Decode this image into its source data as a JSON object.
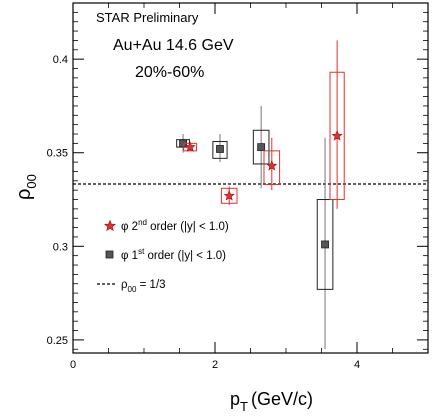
{
  "chart_data": {
    "type": "scatter",
    "xlabel": "p",
    "xlabel_sub": "T",
    "xlabel_unit": "(GeV/c)",
    "ylabel": "ρ",
    "ylabel_sub": "00",
    "xlim": [
      0,
      5
    ],
    "ylim": [
      0.243,
      0.43
    ],
    "xticks": [
      0,
      2,
      4
    ],
    "yticks": [
      0.25,
      0.3,
      0.35,
      0.4
    ],
    "ytick_labels": [
      "0.25",
      "0.3",
      "0.35",
      "0.4"
    ],
    "grid": false,
    "annotations": {
      "preliminary": "STAR Preliminary",
      "system": "Au+Au 14.6 GeV",
      "centrality": "20%-60%"
    },
    "reference_line": {
      "y": 0.3333,
      "label_main": "ρ",
      "label_sub": "00",
      "label_rest": " = 1/3"
    },
    "legend": {
      "placement": "lower-left",
      "entries": [
        {
          "symbol": "star",
          "color": "#e03030",
          "phi": "φ 2",
          "sup": "nd",
          "rest": " order (|y| < 1.0)"
        },
        {
          "symbol": "square",
          "color": "#555555",
          "phi": "φ 1",
          "sup": "st",
          "rest": " order (|y| < 1.0)"
        }
      ]
    },
    "series": [
      {
        "name": "φ 2nd order (|y| < 1.0)",
        "color": "#e03030",
        "marker": "star",
        "points": [
          {
            "x": 1.65,
            "y": 0.353,
            "stat_lo": 0.351,
            "stat_hi": 0.355,
            "sys_lo": 0.351,
            "sys_hi": 0.355,
            "sys_halfwidth": 0.09
          },
          {
            "x": 2.2,
            "y": 0.327,
            "stat_lo": 0.322,
            "stat_hi": 0.332,
            "sys_lo": 0.323,
            "sys_hi": 0.331,
            "sys_halfwidth": 0.11
          },
          {
            "x": 2.8,
            "y": 0.343,
            "stat_lo": 0.33,
            "stat_hi": 0.358,
            "sys_lo": 0.333,
            "sys_hi": 0.351,
            "sys_halfwidth": 0.11
          },
          {
            "x": 3.72,
            "y": 0.359,
            "stat_lo": 0.32,
            "stat_hi": 0.41,
            "sys_lo": 0.325,
            "sys_hi": 0.393,
            "sys_halfwidth": 0.1
          }
        ]
      },
      {
        "name": "φ 1st order (|y| < 1.0)",
        "color": "#555555",
        "marker": "square",
        "points": [
          {
            "x": 1.55,
            "y": 0.355,
            "stat_lo": 0.35,
            "stat_hi": 0.36,
            "sys_lo": 0.353,
            "sys_hi": 0.357,
            "sys_halfwidth": 0.09
          },
          {
            "x": 2.07,
            "y": 0.352,
            "stat_lo": 0.345,
            "stat_hi": 0.36,
            "sys_lo": 0.347,
            "sys_hi": 0.356,
            "sys_halfwidth": 0.1
          },
          {
            "x": 2.65,
            "y": 0.353,
            "stat_lo": 0.331,
            "stat_hi": 0.375,
            "sys_lo": 0.344,
            "sys_hi": 0.362,
            "sys_halfwidth": 0.11
          },
          {
            "x": 3.55,
            "y": 0.301,
            "stat_lo": 0.245,
            "stat_hi": 0.358,
            "sys_lo": 0.277,
            "sys_hi": 0.325,
            "sys_halfwidth": 0.11
          }
        ]
      }
    ]
  }
}
